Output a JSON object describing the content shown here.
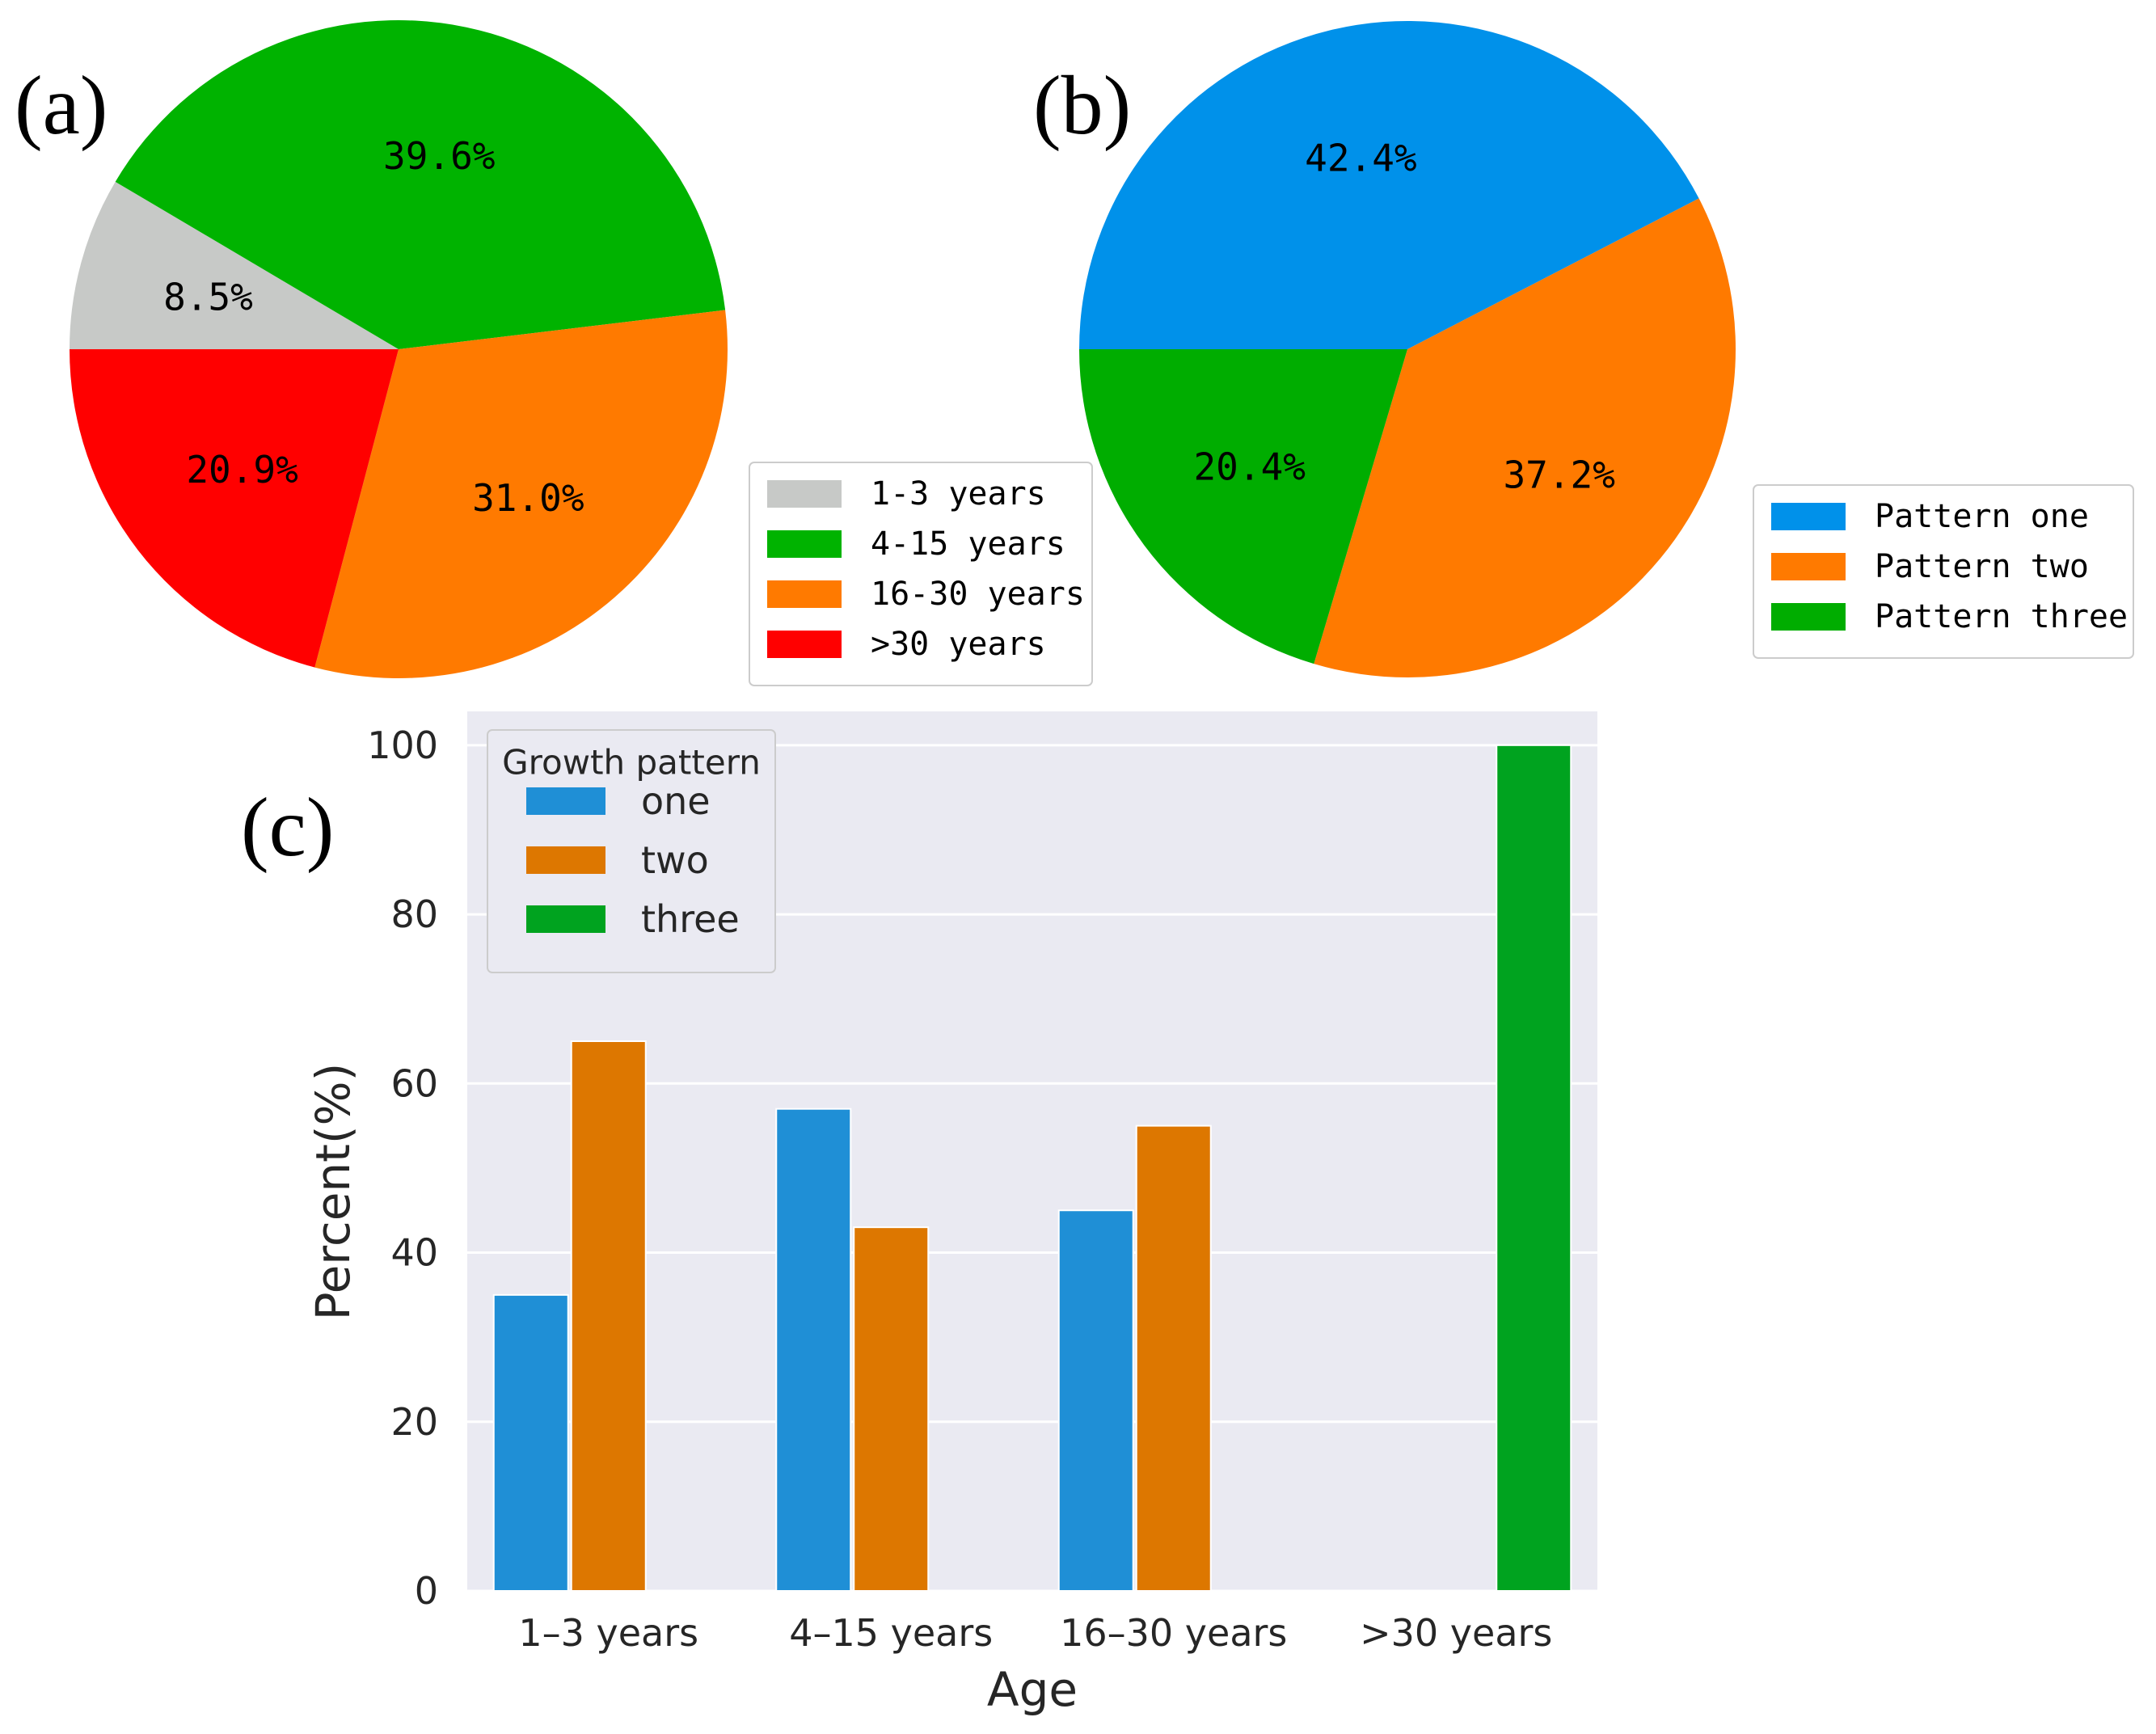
{
  "panels": {
    "a": "(a)",
    "b": "(b)",
    "c": "(c)"
  },
  "chart_data": [
    {
      "id": "a",
      "type": "pie",
      "categories": [
        "1-3 years",
        "4-15 years",
        "16-30 years",
        ">30 years"
      ],
      "values": [
        8.5,
        39.6,
        31.0,
        20.9
      ],
      "labels": [
        "8.5%",
        "39.6%",
        "31.0%",
        "20.9%"
      ],
      "colors": [
        "#c7c9c7",
        "#00b300",
        "#ff7a00",
        "#ff0000"
      ],
      "start_angle_deg": 180,
      "direction": "clockwise",
      "legend": "right"
    },
    {
      "id": "b",
      "type": "pie",
      "categories": [
        "Pattern one",
        "Pattern two",
        "Pattern three"
      ],
      "values": [
        42.4,
        37.2,
        20.4
      ],
      "labels": [
        "42.4%",
        "37.2%",
        "20.4%"
      ],
      "colors": [
        "#0091ea",
        "#ff7a00",
        "#00ad00"
      ],
      "start_angle_deg": 180,
      "direction": "clockwise",
      "legend": "right"
    },
    {
      "id": "c",
      "type": "bar",
      "categories": [
        "1–3 years",
        "4–15 years",
        "16–30 years",
        ">30 years"
      ],
      "series": [
        {
          "name": "one",
          "values": [
            35,
            57,
            45,
            0
          ],
          "color": "#1f8fd6"
        },
        {
          "name": "two",
          "values": [
            65,
            43,
            55,
            0
          ],
          "color": "#dd7700"
        },
        {
          "name": "three",
          "values": [
            0,
            0,
            0,
            100
          ],
          "color": "#00a31f"
        }
      ],
      "xlabel": "Age",
      "ylabel": "Percent(%)",
      "ylim": [
        0,
        104
      ],
      "yticks": [
        0,
        20,
        40,
        60,
        80,
        100
      ],
      "legend_title": "Growth pattern",
      "legend": "top-left",
      "grid": true,
      "background": "#eaeaf2"
    }
  ]
}
